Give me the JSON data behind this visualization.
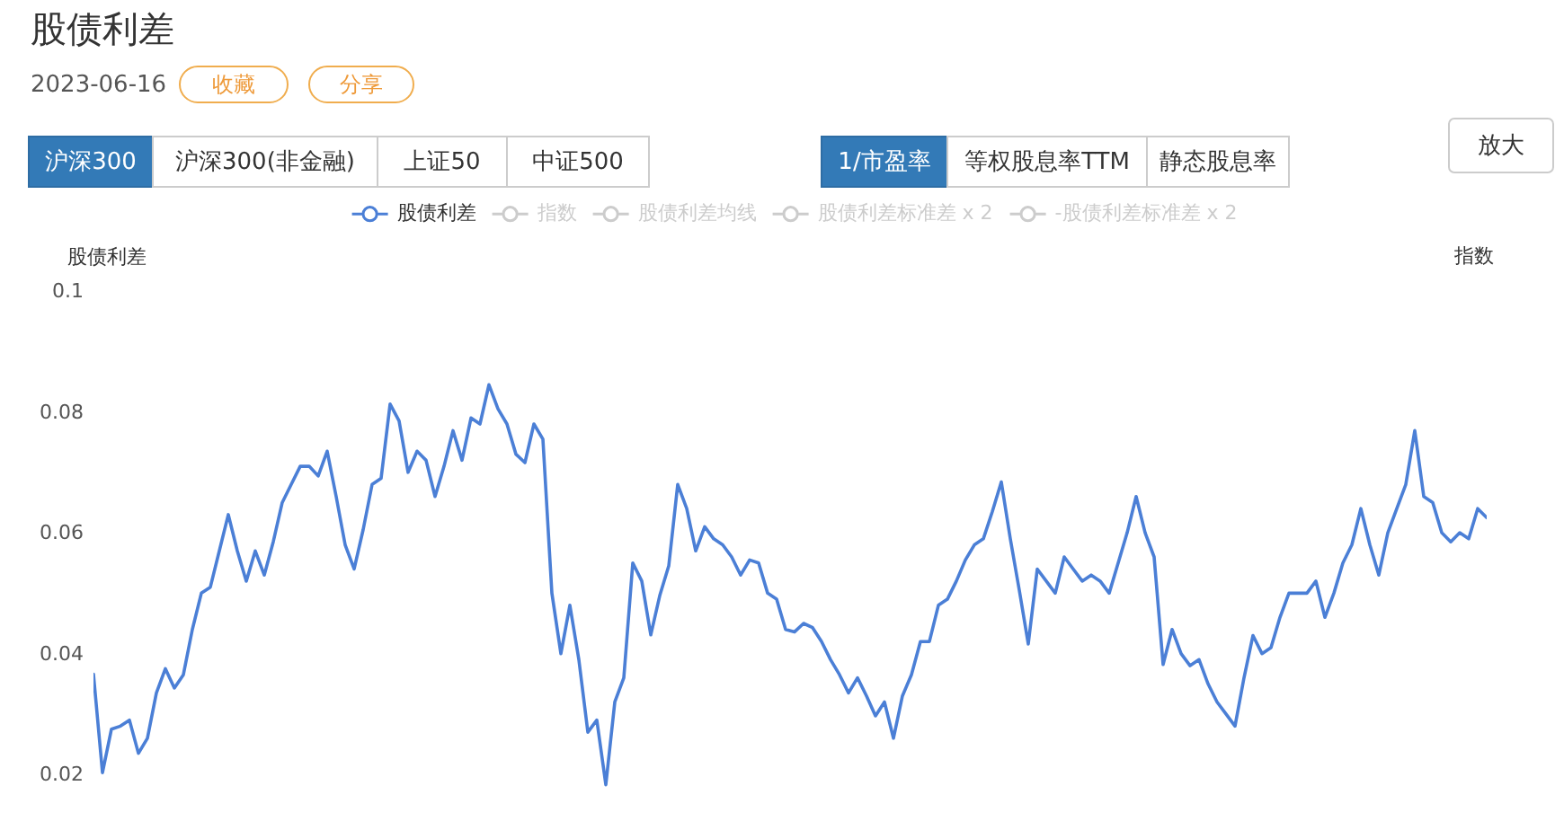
{
  "chart_data": {
    "type": "line",
    "title": "股债利差",
    "subtitle": "2023-06-16",
    "ylabel": "股债利差",
    "y2label": "指数",
    "annotations": [
      "收藏",
      "分享",
      "沪深300",
      "沪深300(非金融)",
      "上证50",
      "中证500",
      "1/市盈率",
      "等权股息率TTM",
      "静态股息率",
      "放大"
    ],
    "categories": [
      null,
      null,
      null,
      null,
      null,
      null,
      null,
      null,
      null,
      null,
      null,
      null,
      null,
      null,
      null,
      null,
      null,
      null,
      null,
      null,
      null,
      null,
      null,
      null,
      null,
      null,
      null,
      null,
      null,
      null,
      null,
      null,
      null,
      null,
      null,
      null,
      null,
      null,
      null,
      null,
      null,
      null,
      null,
      null,
      null,
      null,
      null,
      null,
      null,
      null,
      null,
      null,
      null,
      null,
      null,
      null,
      null,
      null,
      null,
      null,
      null,
      null,
      null,
      null,
      null,
      null,
      null,
      null,
      null,
      null,
      null,
      null,
      null,
      null,
      null,
      null,
      null,
      null,
      null,
      null,
      null,
      null,
      null,
      null,
      null,
      null,
      null,
      null,
      null,
      null,
      null,
      null,
      null,
      null,
      null,
      null,
      null,
      null,
      null,
      null,
      null,
      null,
      null,
      null,
      null,
      null,
      null,
      null,
      null,
      null,
      null,
      null,
      null,
      null,
      null,
      null,
      null,
      null,
      null,
      null,
      null,
      null,
      null,
      null,
      null,
      null,
      null,
      null,
      null,
      null,
      null,
      null,
      null,
      null,
      null,
      null,
      null,
      null,
      null,
      null,
      null,
      null,
      null,
      null,
      null,
      null,
      null,
      null,
      null,
      null,
      null,
      null,
      null,
      null,
      null,
      null
    ],
    "series": [
      {
        "name": "股债利差",
        "color": "#4b7fd6",
        "values": [
          0.0366,
          0.0203,
          0.0275,
          0.028,
          0.029,
          0.0235,
          0.026,
          0.0335,
          0.0375,
          0.0343,
          0.0365,
          0.044,
          0.05,
          0.051,
          0.057,
          0.063,
          0.057,
          0.052,
          0.057,
          0.053,
          0.0585,
          0.065,
          0.068,
          0.071,
          0.071,
          0.0694,
          0.0735,
          0.066,
          0.058,
          0.054,
          0.0605,
          0.068,
          0.069,
          0.0813,
          0.0785,
          0.07,
          0.0735,
          0.072,
          0.066,
          0.071,
          0.0769,
          0.072,
          0.079,
          0.078,
          0.0845,
          0.0805,
          0.078,
          0.073,
          0.0716,
          0.078,
          0.0755,
          0.05,
          0.04,
          0.048,
          0.039,
          0.027,
          0.029,
          0.0183,
          0.032,
          0.036,
          0.055,
          0.052,
          0.0431,
          0.0496,
          0.0545,
          0.068,
          0.064,
          0.057,
          0.061,
          0.059,
          0.058,
          0.056,
          0.053,
          0.0555,
          0.055,
          0.05,
          0.049,
          0.044,
          0.0436,
          0.045,
          0.0443,
          0.042,
          0.039,
          0.0365,
          0.0335,
          0.036,
          0.033,
          0.0297,
          0.032,
          0.026,
          0.033,
          0.0365,
          0.042,
          0.042,
          0.048,
          0.049,
          0.052,
          0.0555,
          0.058,
          0.059,
          0.0635,
          0.0684,
          0.059,
          0.0505,
          0.0416,
          0.054,
          0.052,
          0.05,
          0.056,
          0.054,
          0.052,
          0.053,
          0.052,
          0.05,
          0.055,
          0.06,
          0.066,
          0.06,
          0.056,
          0.0382,
          0.044,
          0.04,
          0.038,
          0.039,
          0.035,
          0.032,
          0.03,
          0.028,
          0.036,
          0.043,
          0.04,
          0.041,
          0.046,
          0.05,
          0.05,
          0.05,
          0.052,
          0.046,
          0.05,
          0.055,
          0.058,
          0.064,
          0.058,
          0.053,
          0.06,
          0.064,
          0.068,
          0.0769,
          0.066,
          0.065,
          0.06,
          0.0585,
          0.06,
          0.059,
          0.064,
          0.0625
        ]
      },
      {
        "name": "指数",
        "color": "#cccccc",
        "values": [
          null,
          null,
          null,
          null,
          null,
          null,
          null,
          null,
          null,
          null,
          null,
          null,
          null,
          null,
          null,
          null,
          null,
          null,
          null,
          null,
          null,
          null,
          null,
          null,
          null,
          null,
          null,
          null,
          null,
          null,
          null,
          null,
          null,
          null,
          null,
          null,
          null,
          null,
          null,
          null,
          null,
          null,
          null,
          null,
          null,
          null,
          null,
          null,
          null,
          null,
          null,
          null,
          null,
          null,
          null,
          null,
          null,
          null,
          null,
          null,
          null,
          null,
          null,
          null,
          null,
          null,
          null,
          null,
          null,
          null,
          null,
          null,
          null,
          null,
          null,
          null,
          null,
          null,
          null,
          null,
          null,
          null,
          null,
          null,
          null,
          null,
          null,
          null,
          null,
          null,
          null,
          null,
          null,
          null,
          null,
          null,
          null,
          null,
          null,
          null,
          null,
          null,
          null,
          null,
          null,
          null,
          null,
          null,
          null,
          null,
          null,
          null,
          null,
          null,
          null,
          null,
          null,
          null,
          null,
          null,
          null,
          null,
          null,
          null,
          null,
          null,
          null,
          null,
          null,
          null,
          null,
          null,
          null,
          null,
          null,
          null,
          null,
          null,
          null,
          null,
          null,
          null,
          null,
          null,
          null,
          null,
          null,
          null,
          null,
          null,
          null,
          null,
          null,
          null,
          null,
          null
        ]
      },
      {
        "name": "股债利差均线",
        "color": "#cccccc",
        "values": [
          null,
          null,
          null,
          null,
          null,
          null,
          null,
          null,
          null,
          null,
          null,
          null,
          null,
          null,
          null,
          null,
          null,
          null,
          null,
          null,
          null,
          null,
          null,
          null,
          null,
          null,
          null,
          null,
          null,
          null,
          null,
          null,
          null,
          null,
          null,
          null,
          null,
          null,
          null,
          null,
          null,
          null,
          null,
          null,
          null,
          null,
          null,
          null,
          null,
          null,
          null,
          null,
          null,
          null,
          null,
          null,
          null,
          null,
          null,
          null,
          null,
          null,
          null,
          null,
          null,
          null,
          null,
          null,
          null,
          null,
          null,
          null,
          null,
          null,
          null,
          null,
          null,
          null,
          null,
          null,
          null,
          null,
          null,
          null,
          null,
          null,
          null,
          null,
          null,
          null,
          null,
          null,
          null,
          null,
          null,
          null,
          null,
          null,
          null,
          null,
          null,
          null,
          null,
          null,
          null,
          null,
          null,
          null,
          null,
          null,
          null,
          null,
          null,
          null,
          null,
          null,
          null,
          null,
          null,
          null,
          null,
          null,
          null,
          null,
          null,
          null,
          null,
          null,
          null,
          null,
          null,
          null,
          null,
          null,
          null,
          null,
          null,
          null,
          null,
          null,
          null,
          null,
          null,
          null,
          null,
          null,
          null,
          null,
          null,
          null,
          null,
          null,
          null,
          null,
          null,
          null
        ]
      },
      {
        "name": "股债利差标准差 x 2",
        "color": "#cccccc",
        "values": [
          null,
          null,
          null,
          null,
          null,
          null,
          null,
          null,
          null,
          null,
          null,
          null,
          null,
          null,
          null,
          null,
          null,
          null,
          null,
          null,
          null,
          null,
          null,
          null,
          null,
          null,
          null,
          null,
          null,
          null,
          null,
          null,
          null,
          null,
          null,
          null,
          null,
          null,
          null,
          null,
          null,
          null,
          null,
          null,
          null,
          null,
          null,
          null,
          null,
          null,
          null,
          null,
          null,
          null,
          null,
          null,
          null,
          null,
          null,
          null,
          null,
          null,
          null,
          null,
          null,
          null,
          null,
          null,
          null,
          null,
          null,
          null,
          null,
          null,
          null,
          null,
          null,
          null,
          null,
          null,
          null,
          null,
          null,
          null,
          null,
          null,
          null,
          null,
          null,
          null,
          null,
          null,
          null,
          null,
          null,
          null,
          null,
          null,
          null,
          null,
          null,
          null,
          null,
          null,
          null,
          null,
          null,
          null,
          null,
          null,
          null,
          null,
          null,
          null,
          null,
          null,
          null,
          null,
          null,
          null,
          null,
          null,
          null,
          null,
          null,
          null,
          null,
          null,
          null,
          null,
          null,
          null,
          null,
          null,
          null,
          null,
          null,
          null,
          null,
          null,
          null,
          null,
          null,
          null,
          null,
          null,
          null,
          null,
          null,
          null,
          null,
          null,
          null,
          null,
          null,
          null
        ]
      },
      {
        "name": "-股债利差标准差 x 2",
        "color": "#cccccc",
        "values": [
          null,
          null,
          null,
          null,
          null,
          null,
          null,
          null,
          null,
          null,
          null,
          null,
          null,
          null,
          null,
          null,
          null,
          null,
          null,
          null,
          null,
          null,
          null,
          null,
          null,
          null,
          null,
          null,
          null,
          null,
          null,
          null,
          null,
          null,
          null,
          null,
          null,
          null,
          null,
          null,
          null,
          null,
          null,
          null,
          null,
          null,
          null,
          null,
          null,
          null,
          null,
          null,
          null,
          null,
          null,
          null,
          null,
          null,
          null,
          null,
          null,
          null,
          null,
          null,
          null,
          null,
          null,
          null,
          null,
          null,
          null,
          null,
          null,
          null,
          null,
          null,
          null,
          null,
          null,
          null,
          null,
          null,
          null,
          null,
          null,
          null,
          null,
          null,
          null,
          null,
          null,
          null,
          null,
          null,
          null,
          null,
          null,
          null,
          null,
          null,
          null,
          null,
          null,
          null,
          null,
          null,
          null,
          null,
          null,
          null,
          null,
          null,
          null,
          null,
          null,
          null,
          null,
          null,
          null,
          null,
          null,
          null,
          null,
          null,
          null,
          null,
          null,
          null,
          null,
          null,
          null,
          null,
          null,
          null,
          null,
          null,
          null,
          null,
          null,
          null,
          null,
          null,
          null,
          null,
          null,
          null,
          null,
          null,
          null,
          null,
          null,
          null,
          null,
          null,
          null,
          null
        ]
      }
    ],
    "ylim": [
      0.012,
      0.1
    ],
    "yticks": [
      0.02,
      0.04,
      0.06,
      0.08,
      0.1
    ],
    "grid": false,
    "legend": "top",
    "tick_labels": "y"
  }
}
